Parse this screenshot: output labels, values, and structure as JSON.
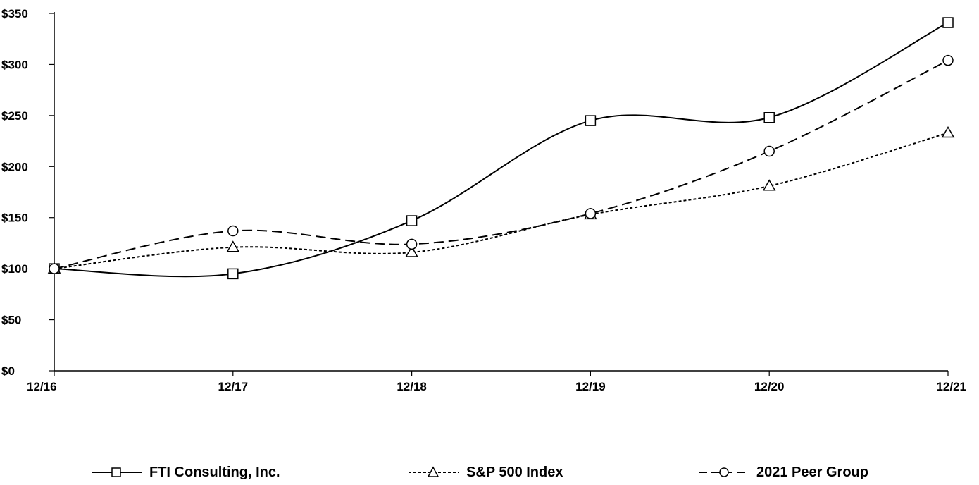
{
  "chart_data": {
    "type": "line",
    "title": "",
    "xlabel": "",
    "ylabel": "",
    "categories": [
      "12/16",
      "12/17",
      "12/18",
      "12/19",
      "12/20",
      "12/21"
    ],
    "ylim": [
      0,
      350
    ],
    "yticks": [
      0,
      50,
      100,
      150,
      200,
      250,
      300,
      350
    ],
    "ytick_labels": [
      "$0",
      "$50",
      "$100",
      "$150",
      "$200",
      "$250",
      "$300",
      "$350"
    ],
    "grid": false,
    "legend_position": "bottom",
    "series": [
      {
        "name": "FTI Consulting, Inc.",
        "marker": "square",
        "line_style": "solid",
        "values": [
          100,
          95,
          147,
          245,
          248,
          341
        ]
      },
      {
        "name": "S&P 500 Index",
        "marker": "triangle",
        "line_style": "dotted",
        "values": [
          100,
          121,
          116,
          153,
          181,
          233
        ]
      },
      {
        "name": "2021 Peer Group",
        "marker": "circle",
        "line_style": "dashed",
        "values": [
          100,
          137,
          124,
          154,
          215,
          304
        ]
      }
    ],
    "colors": {
      "line": "#000000",
      "background": "#ffffff"
    }
  }
}
